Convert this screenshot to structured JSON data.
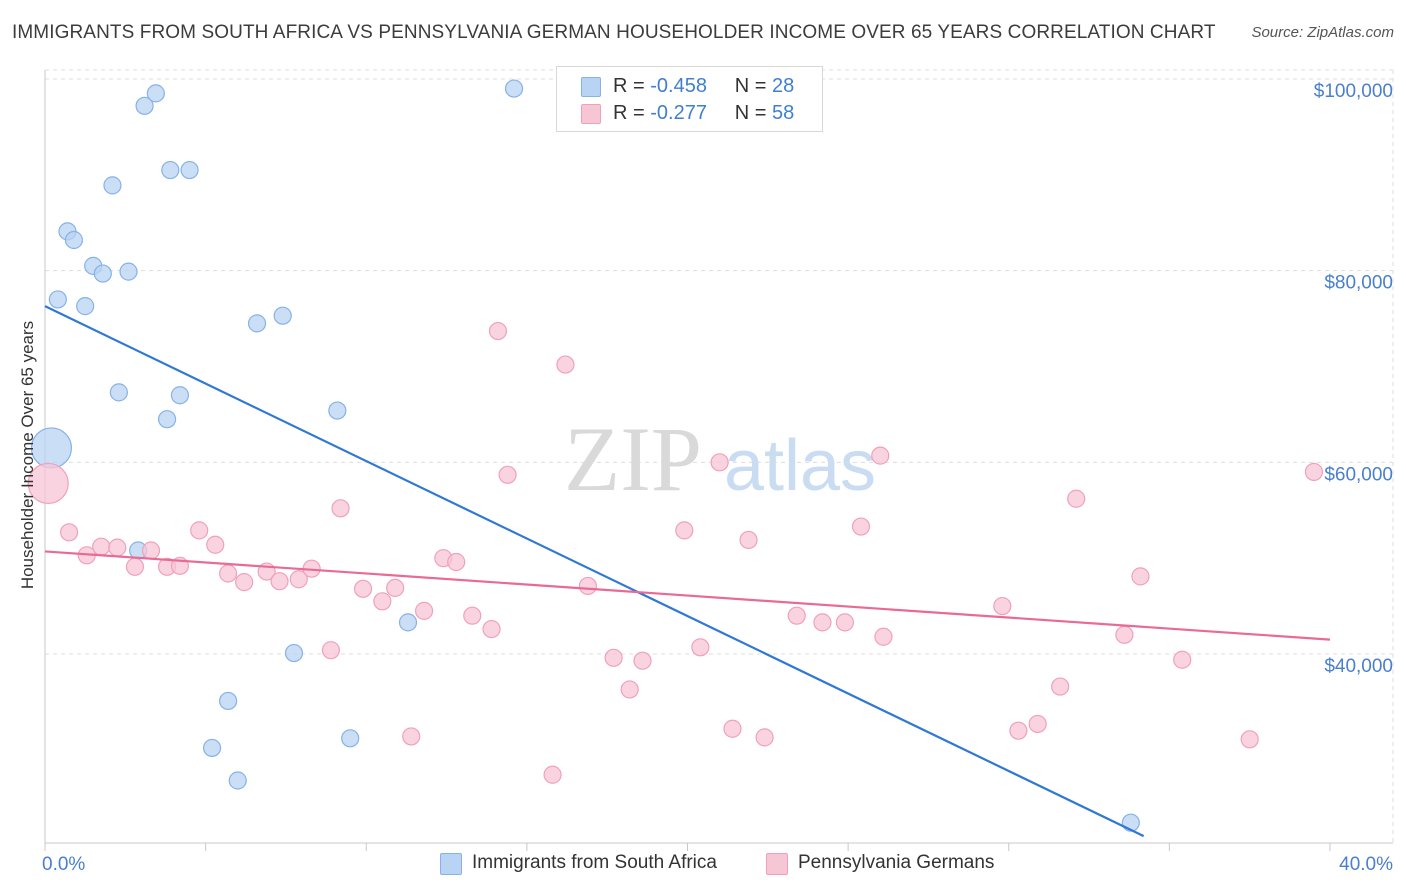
{
  "title": "IMMIGRANTS FROM SOUTH AFRICA VS PENNSYLVANIA GERMAN HOUSEHOLDER INCOME OVER 65 YEARS CORRELATION CHART",
  "source": "Source: ZipAtlas.com",
  "watermark": {
    "zip": "ZIP",
    "atlas": "atlas"
  },
  "stats": [
    {
      "r_label": "R =",
      "r_value": "-0.458",
      "n_label": "N =",
      "n_value": "28"
    },
    {
      "r_label": "R =",
      "r_value": "-0.277",
      "n_label": "N =",
      "n_value": "58"
    }
  ],
  "legend": [
    {
      "label": "Immigrants from South Africa"
    },
    {
      "label": "Pennsylvania Germans"
    }
  ],
  "colors": {
    "blue_fill": "#b8d3f3",
    "blue_stroke": "#86b2e6",
    "blue_line": "#2f78d6",
    "pink_fill": "#f7c6d5",
    "pink_stroke": "#f0a1b9",
    "pink_line": "#e86a95",
    "tick_text": "#4a7fcf",
    "grid": "#dddddd"
  },
  "chart_data": {
    "type": "scatter",
    "title": "IMMIGRANTS FROM SOUTH AFRICA VS PENNSYLVANIA GERMAN HOUSEHOLDER INCOME OVER 65 YEARS CORRELATION CHART",
    "xlabel": "",
    "ylabel": "Householder Income Over 65 years",
    "xlim": [
      0,
      40
    ],
    "ylim": [
      21000,
      102000
    ],
    "x_tick_labels": [
      "0.0%",
      "40.0%"
    ],
    "y_ticks": [
      40000,
      60000,
      80000,
      100000
    ],
    "y_tick_labels": [
      "$40,000",
      "$60,000",
      "$80,000",
      "$100,000"
    ],
    "grid": true,
    "series": [
      {
        "name": "Immigrants from South Africa",
        "trend": {
          "x": [
            0,
            34.2
          ],
          "y": [
            76300,
            21000
          ]
        },
        "points": [
          {
            "x": 0.2,
            "y": 61500,
            "big": true
          },
          {
            "x": 0.4,
            "y": 77000
          },
          {
            "x": 0.7,
            "y": 84100
          },
          {
            "x": 0.9,
            "y": 83200
          },
          {
            "x": 1.25,
            "y": 76300
          },
          {
            "x": 1.5,
            "y": 80500
          },
          {
            "x": 1.8,
            "y": 79700
          },
          {
            "x": 2.1,
            "y": 88900
          },
          {
            "x": 2.3,
            "y": 67300
          },
          {
            "x": 2.6,
            "y": 79900
          },
          {
            "x": 2.9,
            "y": 50800
          },
          {
            "x": 3.1,
            "y": 97200
          },
          {
            "x": 3.45,
            "y": 98500
          },
          {
            "x": 3.8,
            "y": 64500
          },
          {
            "x": 3.9,
            "y": 90500
          },
          {
            "x": 4.2,
            "y": 67000
          },
          {
            "x": 4.5,
            "y": 90500
          },
          {
            "x": 5.7,
            "y": 35100
          },
          {
            "x": 5.2,
            "y": 30200
          },
          {
            "x": 6.0,
            "y": 26800
          },
          {
            "x": 6.6,
            "y": 74500
          },
          {
            "x": 7.4,
            "y": 75300
          },
          {
            "x": 7.75,
            "y": 40100
          },
          {
            "x": 9.1,
            "y": 65400
          },
          {
            "x": 9.5,
            "y": 31200
          },
          {
            "x": 11.3,
            "y": 43300
          },
          {
            "x": 14.6,
            "y": 99000
          },
          {
            "x": 33.8,
            "y": 22400
          }
        ]
      },
      {
        "name": "Pennsylvania Germans",
        "trend": {
          "x": [
            0,
            40
          ],
          "y": [
            50700,
            41500
          ]
        },
        "points": [
          {
            "x": 0.1,
            "y": 57800,
            "big": true
          },
          {
            "x": 0.75,
            "y": 52700
          },
          {
            "x": 1.3,
            "y": 50300
          },
          {
            "x": 1.75,
            "y": 51200
          },
          {
            "x": 2.25,
            "y": 51100
          },
          {
            "x": 2.8,
            "y": 49100
          },
          {
            "x": 3.3,
            "y": 50800
          },
          {
            "x": 3.8,
            "y": 49100
          },
          {
            "x": 4.2,
            "y": 49200
          },
          {
            "x": 4.8,
            "y": 52900
          },
          {
            "x": 5.3,
            "y": 51400
          },
          {
            "x": 5.7,
            "y": 48400
          },
          {
            "x": 6.2,
            "y": 47500
          },
          {
            "x": 6.9,
            "y": 48600
          },
          {
            "x": 7.3,
            "y": 47600
          },
          {
            "x": 7.9,
            "y": 47800
          },
          {
            "x": 8.3,
            "y": 48900
          },
          {
            "x": 8.9,
            "y": 40400
          },
          {
            "x": 9.2,
            "y": 55200
          },
          {
            "x": 9.9,
            "y": 46800
          },
          {
            "x": 10.5,
            "y": 45500
          },
          {
            "x": 10.9,
            "y": 46900
          },
          {
            "x": 11.4,
            "y": 31400
          },
          {
            "x": 11.8,
            "y": 44500
          },
          {
            "x": 12.4,
            "y": 50000
          },
          {
            "x": 12.8,
            "y": 49600
          },
          {
            "x": 13.3,
            "y": 44000
          },
          {
            "x": 13.9,
            "y": 42600
          },
          {
            "x": 14.1,
            "y": 73700
          },
          {
            "x": 14.4,
            "y": 58700
          },
          {
            "x": 15.8,
            "y": 27400
          },
          {
            "x": 16.2,
            "y": 70200
          },
          {
            "x": 16.9,
            "y": 47100
          },
          {
            "x": 17.7,
            "y": 39600
          },
          {
            "x": 18.2,
            "y": 36300
          },
          {
            "x": 18.6,
            "y": 39300
          },
          {
            "x": 19.9,
            "y": 52900
          },
          {
            "x": 20.4,
            "y": 40700
          },
          {
            "x": 21.0,
            "y": 60000
          },
          {
            "x": 21.4,
            "y": 32200
          },
          {
            "x": 21.9,
            "y": 51900
          },
          {
            "x": 22.4,
            "y": 31300
          },
          {
            "x": 23.4,
            "y": 44000
          },
          {
            "x": 24.2,
            "y": 43300
          },
          {
            "x": 24.9,
            "y": 43300
          },
          {
            "x": 25.4,
            "y": 53300
          },
          {
            "x": 26.0,
            "y": 60700
          },
          {
            "x": 26.1,
            "y": 41800
          },
          {
            "x": 29.8,
            "y": 45000
          },
          {
            "x": 30.3,
            "y": 32000
          },
          {
            "x": 30.9,
            "y": 32700
          },
          {
            "x": 31.6,
            "y": 36600
          },
          {
            "x": 32.1,
            "y": 56200
          },
          {
            "x": 33.6,
            "y": 42000
          },
          {
            "x": 34.1,
            "y": 48100
          },
          {
            "x": 35.4,
            "y": 39400
          },
          {
            "x": 37.5,
            "y": 31100
          },
          {
            "x": 39.5,
            "y": 59000
          }
        ]
      }
    ]
  }
}
